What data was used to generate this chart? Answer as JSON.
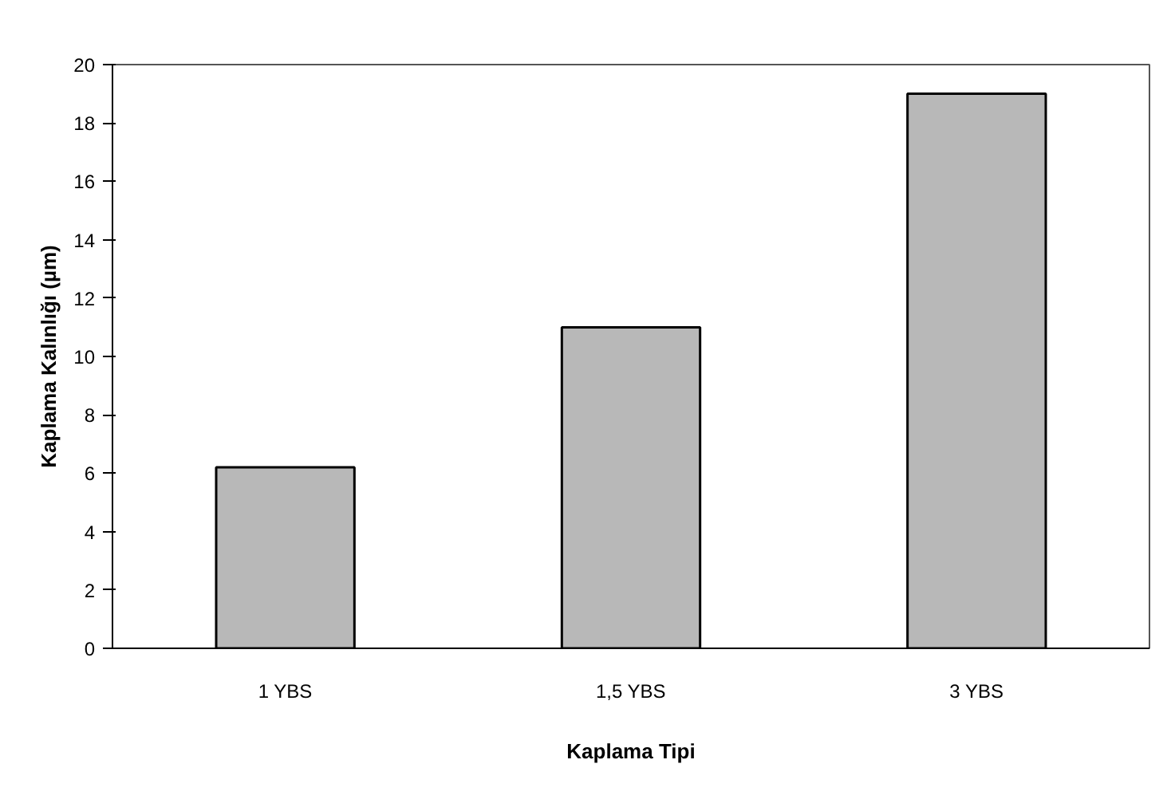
{
  "chart_data": {
    "type": "bar",
    "xlabel": "Kaplama Tipi",
    "ylabel": "Kaplama Kalınlığı (µm)",
    "categories": [
      "1 YBS",
      "1,5 YBS",
      "3 YBS"
    ],
    "values": [
      6.2,
      11,
      19
    ],
    "color": "#b8b8b8",
    "ylim": [
      0,
      20
    ],
    "yticks": [
      0,
      2,
      4,
      6,
      8,
      10,
      12,
      14,
      16,
      18,
      20
    ],
    "grid": false
  }
}
